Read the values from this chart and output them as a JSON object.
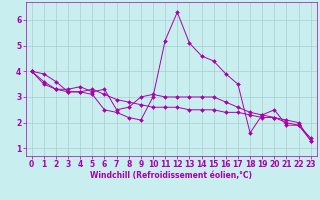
{
  "xlabel": "Windchill (Refroidissement éolien,°C)",
  "ylabel": "",
  "bg_color": "#c8eef0",
  "line_color": "#aa00aa",
  "grid_color": "#aacccc",
  "xlim": [
    -0.5,
    23.5
  ],
  "ylim": [
    0.7,
    6.7
  ],
  "xticks": [
    0,
    1,
    2,
    3,
    4,
    5,
    6,
    7,
    8,
    9,
    10,
    11,
    12,
    13,
    14,
    15,
    16,
    17,
    18,
    19,
    20,
    21,
    22,
    23
  ],
  "yticks": [
    1,
    2,
    3,
    4,
    5,
    6
  ],
  "x": [
    0,
    1,
    2,
    3,
    4,
    5,
    6,
    7,
    8,
    9,
    10,
    11,
    12,
    13,
    14,
    15,
    16,
    17,
    18,
    19,
    20,
    21,
    22,
    23
  ],
  "lines": [
    [
      4.0,
      3.9,
      3.6,
      3.2,
      3.2,
      3.1,
      2.5,
      2.4,
      2.2,
      2.1,
      3.0,
      5.2,
      6.3,
      5.1,
      4.6,
      4.4,
      3.9,
      3.5,
      1.6,
      2.3,
      2.5,
      1.9,
      1.9,
      1.3
    ],
    [
      4.0,
      3.6,
      3.3,
      3.3,
      3.4,
      3.2,
      3.3,
      2.5,
      2.6,
      3.0,
      3.1,
      3.0,
      3.0,
      3.0,
      3.0,
      3.0,
      2.8,
      2.6,
      2.4,
      2.3,
      2.2,
      2.0,
      1.9,
      1.4
    ],
    [
      4.0,
      3.5,
      3.3,
      3.2,
      3.2,
      3.3,
      3.1,
      2.9,
      2.8,
      2.7,
      2.6,
      2.6,
      2.6,
      2.5,
      2.5,
      2.5,
      2.4,
      2.4,
      2.3,
      2.2,
      2.2,
      2.1,
      2.0,
      1.3
    ]
  ],
  "tick_fontsize": 5.5,
  "label_fontsize": 5.5
}
